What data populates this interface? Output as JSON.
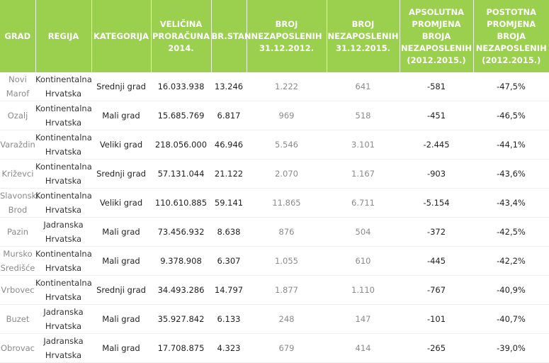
{
  "headers": [
    "GRAD",
    "REGIJA",
    "KATEGORIJA",
    "VELIČINA PRORAČUNA 2014.",
    "BR.STAN",
    "BROJ NEZAPOSLENIH 31.12.2012.",
    "BROJ NEZAPOSLENIH 31.12.2015.",
    "APSOLUTNA PROMJENA BROJA NEZAPOSLENIH (2012.2015.)",
    "POSTOTNA PROMJENA BROJA NEZAPOSLENIH (2012.2015.)"
  ],
  "rows": [
    [
      "Novi Marof",
      "Kontinentalna Hrvatska",
      "Srednji grad",
      "16.033.938",
      "13.246",
      "1.222",
      "641",
      "-581",
      "-47,5%"
    ],
    [
      "Ozalj",
      "Kontinentalna Hrvatska",
      "Mali grad",
      "15.685.769",
      "6.817",
      "969",
      "518",
      "-451",
      "-46,5%"
    ],
    [
      "Varaždin",
      "Kontinentalna Hrvatska",
      "Veliki grad",
      "218.056.000",
      "46.946",
      "5.546",
      "3.101",
      "-2.445",
      "-44,1%"
    ],
    [
      "Križevci",
      "Kontinentalna Hrvatska",
      "Srednji grad",
      "57.131.044",
      "21.122",
      "2.070",
      "1.167",
      "-903",
      "-43,6%"
    ],
    [
      "Slavonski Brod",
      "Kontinentalna Hrvatska",
      "Veliki grad",
      "110.610.885",
      "59.141",
      "11.865",
      "6.711",
      "-5.154",
      "-43,4%"
    ],
    [
      "Pazin",
      "Jadranska Hrvatska",
      "Mali grad",
      "73.456.932",
      "8.638",
      "876",
      "504",
      "-372",
      "-42,5%"
    ],
    [
      "Mursko Središće",
      "Kontinentalna Hrvatska",
      "Mali grad",
      "9.378.908",
      "6.307",
      "1.055",
      "610",
      "-445",
      "-42,2%"
    ],
    [
      "Vrbovec",
      "Kontinentalna Hrvatska",
      "Srednji grad",
      "34.493.286",
      "14.797",
      "1.877",
      "1.110",
      "-767",
      "-40,9%"
    ],
    [
      "Buzet",
      "Jadranska Hrvatska",
      "Mali grad",
      "35.927.842",
      "6.133",
      "248",
      "147",
      "-101",
      "-40,7%"
    ],
    [
      "Obrovac",
      "Jadranska Hrvatska",
      "Mali grad",
      "17.708.875",
      "4.323",
      "679",
      "414",
      "-265",
      "-39,0%"
    ]
  ]
}
